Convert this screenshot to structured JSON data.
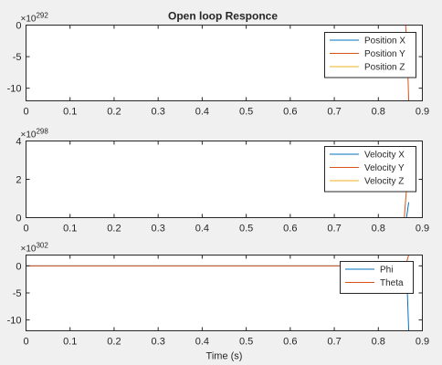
{
  "figure": {
    "title": "Open loop Responce"
  },
  "chart_data": [
    {
      "type": "line",
      "title": "Open loop Responce",
      "xlabel": "",
      "ylabel": "",
      "xlim": [
        0,
        0.9
      ],
      "ylim": [
        -12,
        0
      ],
      "exponent_base": "×10",
      "exponent": "292",
      "xticks": [
        "0",
        "0.1",
        "0.2",
        "0.3",
        "0.4",
        "0.5",
        "0.6",
        "0.7",
        "0.8",
        "0.9"
      ],
      "xtick_values": [
        0,
        0.1,
        0.2,
        0.3,
        0.4,
        0.5,
        0.6,
        0.7,
        0.8,
        0.9
      ],
      "yticks": [
        "0",
        "-5",
        "-10"
      ],
      "ytick_values": [
        0,
        -5,
        -10
      ],
      "legend_position": "top-right",
      "series": [
        {
          "name": "Position X",
          "color": "#0072BD",
          "x": [
            0,
            0.862,
            0.866,
            0.869
          ],
          "y": [
            0,
            0,
            0,
            0
          ]
        },
        {
          "name": "Position Y",
          "color": "#D95319",
          "x": [
            0,
            0.862,
            0.866,
            0.869
          ],
          "y": [
            0,
            0,
            -5,
            -12
          ]
        },
        {
          "name": "Position Z",
          "color": "#EDB120",
          "x": [
            0,
            0.869
          ],
          "y": [
            0,
            0
          ]
        }
      ]
    },
    {
      "type": "line",
      "title": "",
      "xlabel": "",
      "ylabel": "",
      "xlim": [
        0,
        0.9
      ],
      "ylim": [
        0,
        4
      ],
      "exponent_base": "×10",
      "exponent": "298",
      "xticks": [
        "0",
        "0.1",
        "0.2",
        "0.3",
        "0.4",
        "0.5",
        "0.6",
        "0.7",
        "0.8",
        "0.9"
      ],
      "xtick_values": [
        0,
        0.1,
        0.2,
        0.3,
        0.4,
        0.5,
        0.6,
        0.7,
        0.8,
        0.9
      ],
      "yticks": [
        "0",
        "2",
        "4"
      ],
      "ytick_values": [
        0,
        2,
        4
      ],
      "legend_position": "top-right",
      "series": [
        {
          "name": "Velocity X",
          "color": "#0072BD",
          "x": [
            0,
            0.864,
            0.869
          ],
          "y": [
            0,
            0,
            0.8
          ]
        },
        {
          "name": "Velocity Y",
          "color": "#D95319",
          "x": [
            0,
            0.859,
            0.865
          ],
          "y": [
            0,
            0,
            1.8
          ]
        },
        {
          "name": "Velocity Z",
          "color": "#EDB120",
          "x": [
            0,
            0.869
          ],
          "y": [
            0,
            0
          ]
        }
      ]
    },
    {
      "type": "line",
      "title": "",
      "xlabel": "Time (s)",
      "ylabel": "",
      "xlim": [
        0,
        0.9
      ],
      "ylim": [
        -12,
        2
      ],
      "exponent_base": "×10",
      "exponent": "302",
      "xticks": [
        "0",
        "0.1",
        "0.2",
        "0.3",
        "0.4",
        "0.5",
        "0.6",
        "0.7",
        "0.8",
        "0.9"
      ],
      "xtick_values": [
        0,
        0.1,
        0.2,
        0.3,
        0.4,
        0.5,
        0.6,
        0.7,
        0.8,
        0.9
      ],
      "yticks": [
        "0",
        "-5",
        "-10"
      ],
      "ytick_values": [
        0,
        -5,
        -10
      ],
      "legend_position": "top-right",
      "series": [
        {
          "name": "Phi",
          "color": "#0072BD",
          "x": [
            0,
            0.862,
            0.866,
            0.869
          ],
          "y": [
            0,
            0,
            -5,
            -12
          ]
        },
        {
          "name": "Theta",
          "color": "#D95319",
          "x": [
            0,
            0.862,
            0.866,
            0.869
          ],
          "y": [
            0,
            0,
            1.2,
            2
          ]
        }
      ]
    }
  ]
}
